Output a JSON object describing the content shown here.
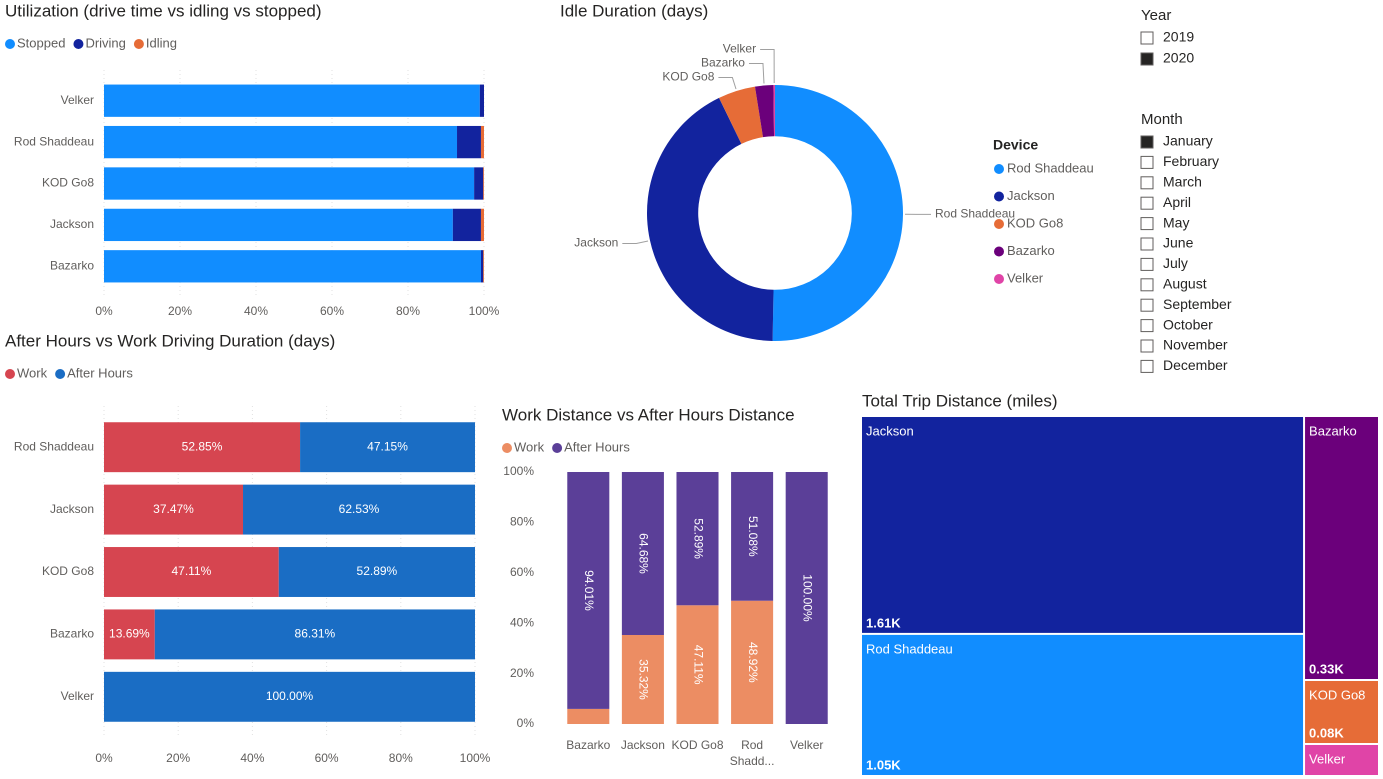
{
  "chart_data": [
    {
      "type": "bar",
      "orientation": "horizontal",
      "stacked": true,
      "title": "Utilization (drive time vs idling vs stopped)",
      "categories": [
        "Velker",
        "Rod Shaddeau",
        "KOD Go8",
        "Jackson",
        "Bazarko"
      ],
      "series": [
        {
          "name": "Stopped",
          "color": "#118DFF",
          "values": [
            98.9,
            92.9,
            97.4,
            91.8,
            99.2
          ]
        },
        {
          "name": "Driving",
          "color": "#12239E",
          "values": [
            1.1,
            6.3,
            2.4,
            7.4,
            0.6
          ]
        },
        {
          "name": "Idling",
          "color": "#E66C37",
          "values": [
            0,
            0.8,
            0.2,
            0.8,
            0.2
          ]
        }
      ],
      "xlim": [
        0,
        100
      ],
      "xticks": [
        {
          "value": 0,
          "label": "0%"
        },
        {
          "value": 20,
          "label": "20%"
        },
        {
          "value": 40,
          "label": "40%"
        },
        {
          "value": 60,
          "label": "60%"
        },
        {
          "value": 80,
          "label": "80%"
        },
        {
          "value": 100,
          "label": "100%"
        }
      ],
      "grid": true,
      "legend": "top-left"
    },
    {
      "type": "donut",
      "title": "Idle Duration (days)",
      "legend_title": "Device",
      "categories": [
        "Rod Shaddeau",
        "Jackson",
        "KOD Go8",
        "Bazarko",
        "Velker"
      ],
      "values": [
        50.3,
        42.5,
        4.7,
        2.3,
        0.2
      ],
      "colors": [
        "#118DFF",
        "#12239E",
        "#E66C37",
        "#6B007B",
        "#E044A7"
      ],
      "hole": 0.6,
      "legend": "right"
    },
    {
      "type": "bar",
      "orientation": "horizontal",
      "stacked": true,
      "title": "After Hours vs Work Driving Duration (days)",
      "categories": [
        "Rod Shaddeau",
        "Jackson",
        "KOD Go8",
        "Bazarko",
        "Velker"
      ],
      "series": [
        {
          "name": "Work",
          "color": "#D64550",
          "values": [
            52.85,
            37.47,
            47.11,
            13.69,
            null
          ],
          "value_labels": [
            "52.85%",
            "37.47%",
            "47.11%",
            "13.69%",
            null
          ]
        },
        {
          "name": "After Hours",
          "color": "#1A6DC4",
          "values": [
            47.15,
            62.53,
            52.89,
            86.31,
            100
          ],
          "value_labels": [
            "47.15%",
            "62.53%",
            "52.89%",
            "86.31%",
            "100.00%"
          ]
        }
      ],
      "xlim": [
        0,
        100
      ],
      "xticks": [
        {
          "value": 0,
          "label": "0%"
        },
        {
          "value": 20,
          "label": "20%"
        },
        {
          "value": 40,
          "label": "40%"
        },
        {
          "value": 60,
          "label": "60%"
        },
        {
          "value": 80,
          "label": "80%"
        },
        {
          "value": 100,
          "label": "100%"
        }
      ],
      "grid": true,
      "legend": "top-left"
    },
    {
      "type": "bar",
      "orientation": "vertical",
      "stacked": true,
      "title": "Work Distance vs After Hours Distance",
      "categories": [
        "Bazarko",
        "Jackson",
        "KOD Go8",
        "Rod Shadd...",
        "Velker"
      ],
      "series": [
        {
          "name": "Work",
          "color": "#EC8D63",
          "values": [
            5.99,
            35.32,
            47.11,
            48.92,
            null
          ],
          "value_labels": [
            null,
            "35.32%",
            "47.11%",
            "48.92%",
            null
          ]
        },
        {
          "name": "After Hours",
          "color": "#5B3F98",
          "values": [
            94.01,
            64.68,
            52.89,
            51.08,
            100
          ],
          "value_labels": [
            "94.01%",
            "64.68%",
            "52.89%",
            "51.08%",
            "100.00%"
          ]
        }
      ],
      "ylim": [
        0,
        100
      ],
      "yticks": [
        {
          "value": 0,
          "label": "0%"
        },
        {
          "value": 20,
          "label": "20%"
        },
        {
          "value": 40,
          "label": "40%"
        },
        {
          "value": 60,
          "label": "60%"
        },
        {
          "value": 80,
          "label": "80%"
        },
        {
          "value": 100,
          "label": "100%"
        }
      ],
      "grid": false,
      "legend": "top-left"
    },
    {
      "type": "treemap",
      "title": "Total Trip Distance (miles)",
      "categories": [
        "Jackson",
        "Rod Shaddeau",
        "Bazarko",
        "KOD Go8",
        "Velker"
      ],
      "values": [
        1610,
        1050,
        330,
        80,
        40
      ],
      "value_labels": [
        "1.61K",
        "1.05K",
        "0.33K",
        "0.08K",
        null
      ],
      "colors": [
        "#12239E",
        "#118DFF",
        "#6B007B",
        "#E66C37",
        "#E044A7"
      ]
    }
  ],
  "slicers": [
    {
      "title": "Year",
      "items": [
        {
          "label": "2019",
          "checked": false
        },
        {
          "label": "2020",
          "checked": true
        }
      ]
    },
    {
      "title": "Month",
      "items": [
        {
          "label": "January",
          "checked": true
        },
        {
          "label": "February",
          "checked": false
        },
        {
          "label": "March",
          "checked": false
        },
        {
          "label": "April",
          "checked": false
        },
        {
          "label": "May",
          "checked": false
        },
        {
          "label": "June",
          "checked": false
        },
        {
          "label": "July",
          "checked": false
        },
        {
          "label": "August",
          "checked": false
        },
        {
          "label": "September",
          "checked": false
        },
        {
          "label": "October",
          "checked": false
        },
        {
          "label": "November",
          "checked": false
        },
        {
          "label": "December",
          "checked": false
        }
      ]
    }
  ]
}
